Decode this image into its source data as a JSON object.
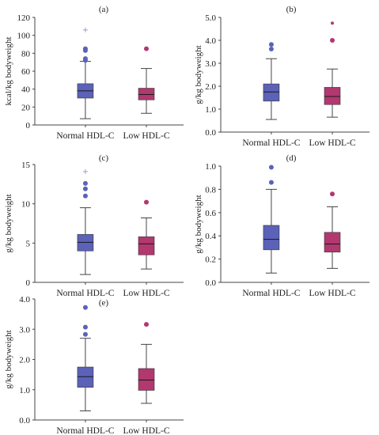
{
  "colors": {
    "normal": "#5b62b8",
    "low": "#b2386f",
    "axis": "#444444",
    "text": "#222222"
  },
  "chart_data": [
    {
      "type": "box",
      "title": "(a)",
      "ylabel": "kcal/kg bodyweight",
      "categories": [
        "Normal HDL-C",
        "Low HDL-C"
      ],
      "ylim": [
        0,
        120
      ],
      "yticks": [
        0,
        20,
        40,
        60,
        80,
        100,
        120
      ],
      "tick_decimals": 0,
      "grid": false,
      "boxes": [
        {
          "min": 7,
          "q1": 30,
          "median": 38,
          "q3": 46,
          "max": 71,
          "outliers": [
            {
              "v": 72,
              "m": "circle"
            },
            {
              "v": 74,
              "m": "circle"
            },
            {
              "v": 83,
              "m": "circle"
            },
            {
              "v": 85,
              "m": "circle"
            },
            {
              "v": 106,
              "m": "plus"
            }
          ]
        },
        {
          "min": 13,
          "q1": 28,
          "median": 34,
          "q3": 41,
          "max": 63,
          "outliers": [
            {
              "v": 85,
              "m": "circle"
            }
          ]
        }
      ]
    },
    {
      "type": "box",
      "title": "(b)",
      "ylabel": "g/kg bodyweight",
      "categories": [
        "Normal HDL-C",
        "Low HDL-C"
      ],
      "ylim": [
        0,
        5.0
      ],
      "yticks": [
        0,
        1.0,
        2.0,
        3.0,
        4.0,
        5.0
      ],
      "tick_decimals": 1,
      "grid": false,
      "boxes": [
        {
          "min": 0.55,
          "q1": 1.35,
          "median": 1.75,
          "q3": 2.1,
          "max": 3.2,
          "outliers": [
            {
              "v": 3.62,
              "m": "circle"
            },
            {
              "v": 3.82,
              "m": "circle"
            }
          ]
        },
        {
          "min": 0.65,
          "q1": 1.2,
          "median": 1.55,
          "q3": 1.95,
          "max": 2.75,
          "outliers": [
            {
              "v": 4.0,
              "m": "circle"
            },
            {
              "v": 4.75,
              "m": "smalldot"
            }
          ]
        }
      ]
    },
    {
      "type": "box",
      "title": "(c)",
      "ylabel": "g/kg bodyweight",
      "categories": [
        "Normal HDL-C",
        "Low HDL-C"
      ],
      "ylim": [
        0,
        15
      ],
      "yticks": [
        0,
        5,
        10,
        15
      ],
      "tick_decimals": 0,
      "grid": false,
      "boxes": [
        {
          "min": 1.0,
          "q1": 4.0,
          "median": 5.1,
          "q3": 6.1,
          "max": 9.5,
          "outliers": [
            {
              "v": 11.0,
              "m": "circle"
            },
            {
              "v": 11.9,
              "m": "circle"
            },
            {
              "v": 12.6,
              "m": "circle"
            },
            {
              "v": 14.1,
              "m": "plus"
            }
          ]
        },
        {
          "min": 1.7,
          "q1": 3.5,
          "median": 4.9,
          "q3": 5.8,
          "max": 8.2,
          "outliers": [
            {
              "v": 10.2,
              "m": "circle"
            }
          ]
        }
      ]
    },
    {
      "type": "box",
      "title": "(d)",
      "ylabel": "g/kg bodyweight",
      "categories": [
        "Normal HDL-C",
        "Low HDL-C"
      ],
      "ylim": [
        0,
        1.0
      ],
      "yticks": [
        0,
        0.2,
        0.4,
        0.6,
        0.8,
        1.0
      ],
      "tick_decimals": 1,
      "grid": false,
      "boxes": [
        {
          "min": 0.08,
          "q1": 0.28,
          "median": 0.37,
          "q3": 0.49,
          "max": 0.8,
          "outliers": [
            {
              "v": 0.86,
              "m": "circle"
            },
            {
              "v": 0.99,
              "m": "circle"
            }
          ]
        },
        {
          "min": 0.12,
          "q1": 0.26,
          "median": 0.33,
          "q3": 0.43,
          "max": 0.65,
          "outliers": [
            {
              "v": 0.76,
              "m": "circle"
            }
          ]
        }
      ]
    },
    {
      "type": "box",
      "title": "(e)",
      "ylabel": "g/kg bodyweight",
      "categories": [
        "Normal HDL-C",
        "Low HDL-C"
      ],
      "ylim": [
        0,
        4.0
      ],
      "yticks": [
        0,
        1.0,
        2.0,
        3.0,
        4.0
      ],
      "tick_decimals": 1,
      "grid": false,
      "boxes": [
        {
          "min": 0.3,
          "q1": 1.08,
          "median": 1.43,
          "q3": 1.75,
          "max": 2.7,
          "outliers": [
            {
              "v": 2.83,
              "m": "circle"
            },
            {
              "v": 3.07,
              "m": "circle"
            },
            {
              "v": 3.72,
              "m": "circle"
            }
          ]
        },
        {
          "min": 0.55,
          "q1": 0.98,
          "median": 1.32,
          "q3": 1.7,
          "max": 2.5,
          "outliers": [
            {
              "v": 3.16,
              "m": "circle"
            }
          ]
        }
      ]
    }
  ]
}
